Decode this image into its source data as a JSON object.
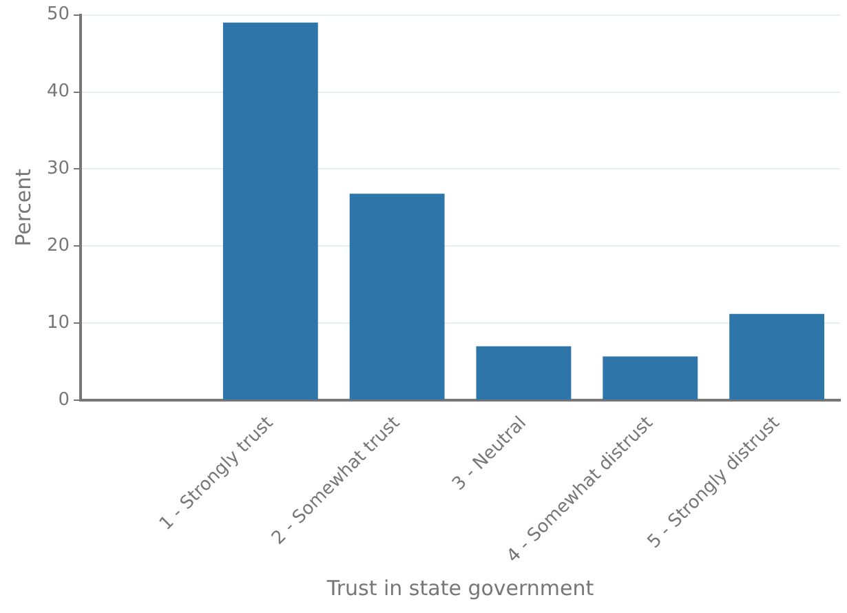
{
  "chart_data": {
    "type": "bar",
    "xlabel": "Trust in state government",
    "ylabel": "Percent",
    "categories": [
      null,
      "1 - Strongly trust",
      "2 - Somewhat trust",
      "3 - Neutral",
      "4 - Somewhat distrust",
      "5 - Strongly distrust"
    ],
    "values": [
      null,
      49,
      26.8,
      7,
      5.7,
      11.2
    ],
    "color": "#2e75a9",
    "ylim": [
      0,
      50
    ],
    "yticks": [
      0,
      10,
      20,
      30,
      40,
      50
    ],
    "grid": "y",
    "legend": false
  }
}
